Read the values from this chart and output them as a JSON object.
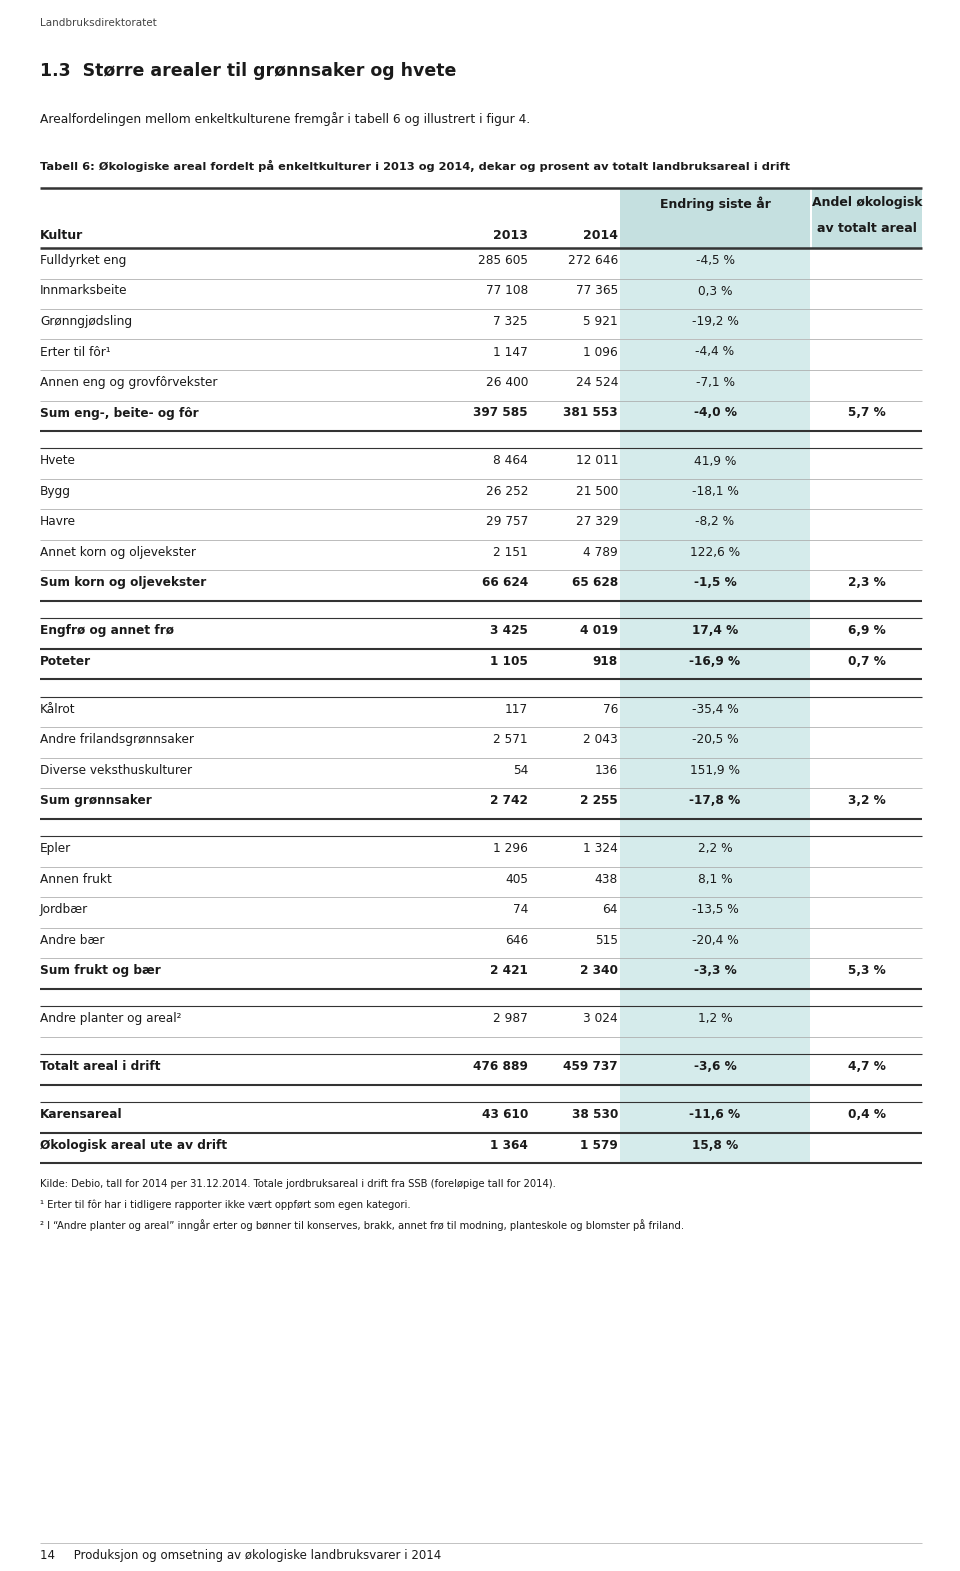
{
  "page_label": "Landbruksdirektoratet",
  "section_title": "1.3  Større arealer til grønnsaker og hvete",
  "section_text": "Arealfordelingen mellom enkeltkulturene fremgår i tabell 6 og illustrert i figur 4.",
  "table_caption": "Tabell 6: Økologiske areal fordelt på enkeltkulturer i 2013 og 2014, dekar og prosent av totalt landbruksareal i drift",
  "rows": [
    {
      "label": "Fulldyrket eng",
      "v2013": "285 605",
      "v2014": "272 646",
      "endring": "-4,5 %",
      "andel": "",
      "bold": false,
      "group_spacer": false,
      "is_sum": false,
      "double_line_below": false
    },
    {
      "label": "Innmarksbeite",
      "v2013": "77 108",
      "v2014": "77 365",
      "endring": "0,3 %",
      "andel": "",
      "bold": false,
      "group_spacer": false,
      "is_sum": false,
      "double_line_below": false
    },
    {
      "label": "Grønngjødsling",
      "v2013": "7 325",
      "v2014": "5 921",
      "endring": "-19,2 %",
      "andel": "",
      "bold": false,
      "group_spacer": false,
      "is_sum": false,
      "double_line_below": false
    },
    {
      "label": "Erter til fôr¹",
      "v2013": "1 147",
      "v2014": "1 096",
      "endring": "-4,4 %",
      "andel": "",
      "bold": false,
      "group_spacer": false,
      "is_sum": false,
      "double_line_below": false
    },
    {
      "label": "Annen eng og grovfôrvekster",
      "v2013": "26 400",
      "v2014": "24 524",
      "endring": "-7,1 %",
      "andel": "",
      "bold": false,
      "group_spacer": false,
      "is_sum": false,
      "double_line_below": false
    },
    {
      "label": "Sum eng-, beite- og fôr",
      "v2013": "397 585",
      "v2014": "381 553",
      "endring": "-4,0 %",
      "andel": "5,7 %",
      "bold": true,
      "group_spacer": false,
      "is_sum": true,
      "double_line_below": false
    },
    {
      "label": "",
      "v2013": "",
      "v2014": "",
      "endring": "",
      "andel": "",
      "bold": false,
      "group_spacer": true,
      "is_sum": false,
      "double_line_below": false
    },
    {
      "label": "Hvete",
      "v2013": "8 464",
      "v2014": "12 011",
      "endring": "41,9 %",
      "andel": "",
      "bold": false,
      "group_spacer": false,
      "is_sum": false,
      "double_line_below": false
    },
    {
      "label": "Bygg",
      "v2013": "26 252",
      "v2014": "21 500",
      "endring": "-18,1 %",
      "andel": "",
      "bold": false,
      "group_spacer": false,
      "is_sum": false,
      "double_line_below": false
    },
    {
      "label": "Havre",
      "v2013": "29 757",
      "v2014": "27 329",
      "endring": "-8,2 %",
      "andel": "",
      "bold": false,
      "group_spacer": false,
      "is_sum": false,
      "double_line_below": false
    },
    {
      "label": "Annet korn og oljevekster",
      "v2013": "2 151",
      "v2014": "4 789",
      "endring": "122,6 %",
      "andel": "",
      "bold": false,
      "group_spacer": false,
      "is_sum": false,
      "double_line_below": false
    },
    {
      "label": "Sum korn og oljevekster",
      "v2013": "66 624",
      "v2014": "65 628",
      "endring": "-1,5 %",
      "andel": "2,3 %",
      "bold": true,
      "group_spacer": false,
      "is_sum": true,
      "double_line_below": false
    },
    {
      "label": "",
      "v2013": "",
      "v2014": "",
      "endring": "",
      "andel": "",
      "bold": false,
      "group_spacer": true,
      "is_sum": false,
      "double_line_below": false
    },
    {
      "label": "Engfrø og annet frø",
      "v2013": "3 425",
      "v2014": "4 019",
      "endring": "17,4 %",
      "andel": "6,9 %",
      "bold": true,
      "group_spacer": false,
      "is_sum": false,
      "double_line_below": true
    },
    {
      "label": "Poteter",
      "v2013": "1 105",
      "v2014": "918",
      "endring": "-16,9 %",
      "andel": "0,7 %",
      "bold": true,
      "group_spacer": false,
      "is_sum": false,
      "double_line_below": true
    },
    {
      "label": "",
      "v2013": "",
      "v2014": "",
      "endring": "",
      "andel": "",
      "bold": false,
      "group_spacer": true,
      "is_sum": false,
      "double_line_below": false
    },
    {
      "label": "Kålrot",
      "v2013": "117",
      "v2014": "76",
      "endring": "-35,4 %",
      "andel": "",
      "bold": false,
      "group_spacer": false,
      "is_sum": false,
      "double_line_below": false
    },
    {
      "label": "Andre frilandsgrønnsaker",
      "v2013": "2 571",
      "v2014": "2 043",
      "endring": "-20,5 %",
      "andel": "",
      "bold": false,
      "group_spacer": false,
      "is_sum": false,
      "double_line_below": false
    },
    {
      "label": "Diverse veksthuskulturer",
      "v2013": "54",
      "v2014": "136",
      "endring": "151,9 %",
      "andel": "",
      "bold": false,
      "group_spacer": false,
      "is_sum": false,
      "double_line_below": false
    },
    {
      "label": "Sum grønnsaker",
      "v2013": "2 742",
      "v2014": "2 255",
      "endring": "-17,8 %",
      "andel": "3,2 %",
      "bold": true,
      "group_spacer": false,
      "is_sum": true,
      "double_line_below": false
    },
    {
      "label": "",
      "v2013": "",
      "v2014": "",
      "endring": "",
      "andel": "",
      "bold": false,
      "group_spacer": true,
      "is_sum": false,
      "double_line_below": false
    },
    {
      "label": "Epler",
      "v2013": "1 296",
      "v2014": "1 324",
      "endring": "2,2 %",
      "andel": "",
      "bold": false,
      "group_spacer": false,
      "is_sum": false,
      "double_line_below": false
    },
    {
      "label": "Annen frukt",
      "v2013": "405",
      "v2014": "438",
      "endring": "8,1 %",
      "andel": "",
      "bold": false,
      "group_spacer": false,
      "is_sum": false,
      "double_line_below": false
    },
    {
      "label": "Jordbær",
      "v2013": "74",
      "v2014": "64",
      "endring": "-13,5 %",
      "andel": "",
      "bold": false,
      "group_spacer": false,
      "is_sum": false,
      "double_line_below": false
    },
    {
      "label": "Andre bær",
      "v2013": "646",
      "v2014": "515",
      "endring": "-20,4 %",
      "andel": "",
      "bold": false,
      "group_spacer": false,
      "is_sum": false,
      "double_line_below": false
    },
    {
      "label": "Sum frukt og bær",
      "v2013": "2 421",
      "v2014": "2 340",
      "endring": "-3,3 %",
      "andel": "5,3 %",
      "bold": true,
      "group_spacer": false,
      "is_sum": true,
      "double_line_below": false
    },
    {
      "label": "",
      "v2013": "",
      "v2014": "",
      "endring": "",
      "andel": "",
      "bold": false,
      "group_spacer": true,
      "is_sum": false,
      "double_line_below": false
    },
    {
      "label": "Andre planter og areal²",
      "v2013": "2 987",
      "v2014": "3 024",
      "endring": "1,2 %",
      "andel": "",
      "bold": false,
      "group_spacer": false,
      "is_sum": false,
      "double_line_below": false
    },
    {
      "label": "",
      "v2013": "",
      "v2014": "",
      "endring": "",
      "andel": "",
      "bold": false,
      "group_spacer": true,
      "is_sum": false,
      "double_line_below": false
    },
    {
      "label": "Totalt areal i drift",
      "v2013": "476 889",
      "v2014": "459 737",
      "endring": "-3,6 %",
      "andel": "4,7 %",
      "bold": true,
      "group_spacer": false,
      "is_sum": true,
      "double_line_below": false
    },
    {
      "label": "",
      "v2013": "",
      "v2014": "",
      "endring": "",
      "andel": "",
      "bold": false,
      "group_spacer": true,
      "is_sum": false,
      "double_line_below": false
    },
    {
      "label": "Karensareal",
      "v2013": "43 610",
      "v2014": "38 530",
      "endring": "-11,6 %",
      "andel": "0,4 %",
      "bold": true,
      "group_spacer": false,
      "is_sum": true,
      "double_line_below": false
    },
    {
      "label": "Økologisk areal ute av drift",
      "v2013": "1 364",
      "v2014": "1 579",
      "endring": "15,8 %",
      "andel": "",
      "bold": true,
      "group_spacer": false,
      "is_sum": true,
      "double_line_below": false
    }
  ],
  "footnotes": [
    "Kilde: Debio, tall for 2014 per 31.12.2014. Totale jordbruksareal i drift fra SSB (foreløpige tall for 2014).",
    "¹ Erter til fôr har i tidligere rapporter ikke vært oppført som egen kategori.",
    "² I “Andre planter og areal” inngår erter og bønner til konserves, brakk, annet frø til modning, planteskole og blomster på friland."
  ],
  "footer_text": "14     Produksjon og omsetning av økologiske landbruksvarer i 2014",
  "bg_color": "#ffffff",
  "header_bg": "#c5e0e0",
  "highlight_col_bg": "#d5ebeb",
  "text_color": "#1a1a1a",
  "line_color_light": "#aaaaaa",
  "line_color_dark": "#333333"
}
